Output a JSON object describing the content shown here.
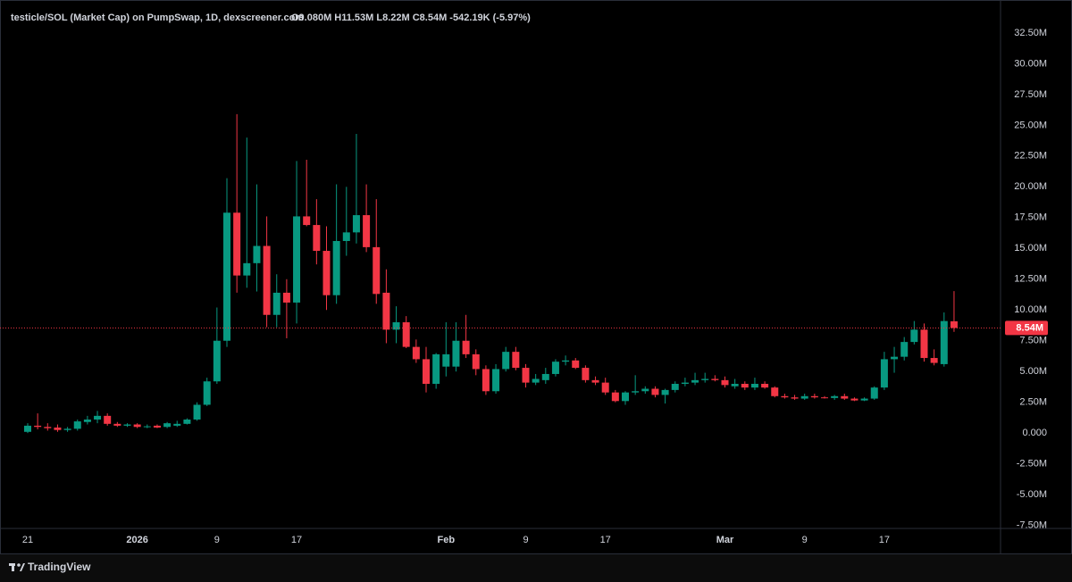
{
  "chart_data": {
    "type": "candlestick",
    "title": "testicle/SOL (Market Cap) on PumpSwap, 1D, dexscreener.com",
    "legend_text": "O9.080M H11.53M L8.22M C8.54M -542.19K (-5.97%)",
    "categories": [
      "21",
      null,
      null,
      null,
      null,
      null,
      null,
      null,
      null,
      null,
      null,
      "2026",
      null,
      null,
      null,
      null,
      null,
      null,
      null,
      "9",
      null,
      null,
      null,
      null,
      null,
      null,
      null,
      "17",
      null,
      null,
      null,
      null,
      null,
      null,
      null,
      null,
      null,
      null,
      null,
      null,
      null,
      null,
      "Feb",
      null,
      null,
      null,
      null,
      null,
      null,
      null,
      "9",
      null,
      null,
      null,
      null,
      null,
      null,
      null,
      "17",
      null,
      null,
      null,
      null,
      null,
      null,
      null,
      null,
      null,
      null,
      null,
      "Mar",
      null,
      null,
      null,
      null,
      null,
      null,
      null,
      "9",
      null,
      null,
      null,
      null,
      null,
      null,
      null,
      "17",
      null,
      null,
      null,
      null,
      null,
      null,
      null
    ],
    "open": [
      0.1,
      0.6,
      0.5,
      0.45,
      0.25,
      0.35,
      0.9,
      1.1,
      1.4,
      0.75,
      0.6,
      0.7,
      0.5,
      0.6,
      0.5,
      0.6,
      0.75,
      1.1,
      2.3,
      4.2,
      7.5,
      17.9,
      12.8,
      13.8,
      15.2,
      9.6,
      11.4,
      10.6,
      17.6,
      16.9,
      14.8,
      11.2,
      15.6,
      16.3,
      17.7,
      15.1,
      11.4,
      8.4,
      9.0,
      7.0,
      6.0,
      4.0,
      5.4,
      5.4,
      7.5,
      6.4,
      5.2,
      3.4,
      5.2,
      6.6,
      5.3,
      4.1,
      4.3,
      4.8,
      5.8,
      5.9,
      5.3,
      4.3,
      4.1,
      3.3,
      2.6,
      3.3,
      3.4,
      3.6,
      3.1,
      3.5,
      4.0,
      4.1,
      4.3,
      4.4,
      4.3,
      3.8,
      4.0,
      3.7,
      4.0,
      3.7,
      3.0,
      2.9,
      2.8,
      3.0,
      2.9,
      2.85,
      3.0,
      2.8,
      2.65,
      2.8,
      3.7,
      6.0,
      6.2,
      7.4,
      8.4,
      6.1,
      5.6,
      9.08
    ],
    "high": [
      0.8,
      1.6,
      0.8,
      0.7,
      0.5,
      1.1,
      1.4,
      1.8,
      1.6,
      0.9,
      0.8,
      0.8,
      0.7,
      0.7,
      0.9,
      1.0,
      1.2,
      2.5,
      4.5,
      10.2,
      20.7,
      25.9,
      24.0,
      20.2,
      17.6,
      12.9,
      12.5,
      22.1,
      22.2,
      19.0,
      16.8,
      20.2,
      20.0,
      24.3,
      20.2,
      19.0,
      13.3,
      10.3,
      9.5,
      7.6,
      7.0,
      6.5,
      9.0,
      9.0,
      9.6,
      6.8,
      5.5,
      5.6,
      7.0,
      7.0,
      5.6,
      4.8,
      5.3,
      6.0,
      6.3,
      6.1,
      5.5,
      4.6,
      4.5,
      3.5,
      3.4,
      4.7,
      3.8,
      3.8,
      3.6,
      4.2,
      4.5,
      4.9,
      4.9,
      4.7,
      4.6,
      4.4,
      4.2,
      4.5,
      4.2,
      3.8,
      3.2,
      3.1,
      3.2,
      3.2,
      3.0,
      3.1,
      3.2,
      2.9,
      2.9,
      3.8,
      6.6,
      7.0,
      7.8,
      9.1,
      8.9,
      6.8,
      9.8,
      11.53
    ],
    "low": [
      0.0,
      0.3,
      0.2,
      0.1,
      0.1,
      0.2,
      0.7,
      0.8,
      0.6,
      0.5,
      0.5,
      0.4,
      0.4,
      0.4,
      0.4,
      0.5,
      0.7,
      1.0,
      2.2,
      4.0,
      7.0,
      11.4,
      11.8,
      11.5,
      8.6,
      8.6,
      7.7,
      8.9,
      16.8,
      13.7,
      10.0,
      10.5,
      14.4,
      15.4,
      14.7,
      10.5,
      7.3,
      7.3,
      6.9,
      5.7,
      3.3,
      3.6,
      4.6,
      5.0,
      6.1,
      4.7,
      3.1,
      3.2,
      5.0,
      5.1,
      3.7,
      3.9,
      4.0,
      4.6,
      5.5,
      5.2,
      4.1,
      3.9,
      3.1,
      2.5,
      2.3,
      3.1,
      3.2,
      2.9,
      2.4,
      3.3,
      3.8,
      3.9,
      4.1,
      4.2,
      3.7,
      3.6,
      3.5,
      3.5,
      3.6,
      2.9,
      2.8,
      2.7,
      2.7,
      2.8,
      2.8,
      2.7,
      2.7,
      2.6,
      2.6,
      2.7,
      3.5,
      4.9,
      5.9,
      7.2,
      5.8,
      5.5,
      5.4,
      8.22
    ],
    "close": [
      0.6,
      0.5,
      0.4,
      0.25,
      0.35,
      0.95,
      1.1,
      1.4,
      0.75,
      0.6,
      0.7,
      0.5,
      0.55,
      0.45,
      0.8,
      0.75,
      1.1,
      2.3,
      4.2,
      7.5,
      17.9,
      12.8,
      13.8,
      15.2,
      9.6,
      11.4,
      10.6,
      17.6,
      16.9,
      14.8,
      11.2,
      15.6,
      16.3,
      17.7,
      15.1,
      11.3,
      8.4,
      9.0,
      7.0,
      6.0,
      4.0,
      6.4,
      6.4,
      7.5,
      6.4,
      5.2,
      3.4,
      5.2,
      6.6,
      5.3,
      4.1,
      4.4,
      4.8,
      5.8,
      5.9,
      5.3,
      4.3,
      4.1,
      3.3,
      2.6,
      3.3,
      3.4,
      3.6,
      3.1,
      3.5,
      4.0,
      4.1,
      4.3,
      4.4,
      4.3,
      3.9,
      4.0,
      3.7,
      4.0,
      3.7,
      3.0,
      2.9,
      2.8,
      3.0,
      2.9,
      2.85,
      3.0,
      2.8,
      2.65,
      2.8,
      3.7,
      6.0,
      6.2,
      7.4,
      8.4,
      6.1,
      5.7,
      9.1,
      8.54
    ],
    "up_color": "#089981",
    "down_color": "#f23645",
    "ylim": [
      -7.6,
      33.0
    ],
    "yticks": [
      {
        "value": 32.5,
        "label": "32.50M"
      },
      {
        "value": 30,
        "label": "30.00M"
      },
      {
        "value": 27.5,
        "label": "27.50M"
      },
      {
        "value": 25,
        "label": "25.00M"
      },
      {
        "value": 22.5,
        "label": "22.50M"
      },
      {
        "value": 20,
        "label": "20.00M"
      },
      {
        "value": 17.5,
        "label": "17.50M"
      },
      {
        "value": 15,
        "label": "15.00M"
      },
      {
        "value": 12.5,
        "label": "12.50M"
      },
      {
        "value": 10,
        "label": "10.00M"
      },
      {
        "value": 7.5,
        "label": "7.50M"
      },
      {
        "value": 5,
        "label": "5.00M"
      },
      {
        "value": 2.5,
        "label": "2.50M"
      },
      {
        "value": 0,
        "label": "0.000"
      },
      {
        "value": -2.5,
        "label": "-2.50M"
      },
      {
        "value": -5,
        "label": "-5.00M"
      },
      {
        "value": -7.5,
        "label": "-7.50M"
      }
    ],
    "grid": false,
    "last_price": {
      "value": 8.54,
      "label": "8.54M"
    }
  },
  "footer": {
    "brand": "TradingView"
  }
}
